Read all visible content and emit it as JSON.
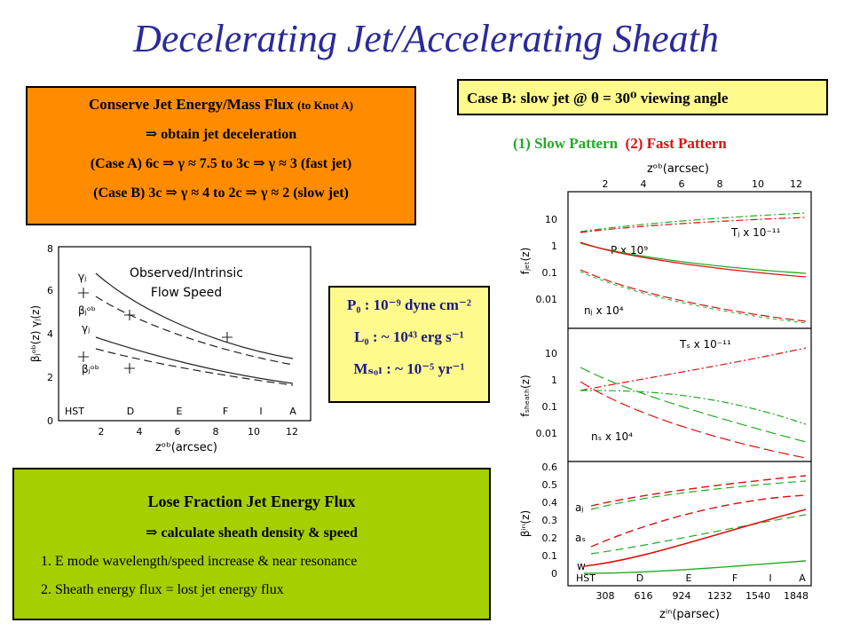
{
  "title": "Decelerating Jet/Accelerating Sheath",
  "box_orange": {
    "line1": "Conserve Jet Energy/Mass Flux",
    "line1_small": "(to Knot A)",
    "line2": "⇒ obtain jet deceleration",
    "line3": "(Case A) 6c ⇒ γ ≈ 7.5 to 3c ⇒ γ ≈ 3 (fast jet)",
    "line4": "(Case B) 3c ⇒ γ ≈ 4 to 2c ⇒ γ ≈ 2 (slow jet)"
  },
  "box_caseb": {
    "text": "Case B: slow jet @ θ = 30⁰ viewing angle"
  },
  "patterns": {
    "slow": "(1) Slow Pattern",
    "fast": "(2) Fast Pattern"
  },
  "box_params": {
    "p0": "P₀ : 10⁻⁹ dyne cm⁻²",
    "l0": "L₀ : ~ 10⁴³ erg s⁻¹",
    "msol": "Mₛₒₗ : ~ 10⁻⁵ yr⁻¹"
  },
  "box_green": {
    "heading": "Lose Fraction Jet Energy Flux",
    "subheading": "⇒ calculate sheath density & speed",
    "item1": "1. E mode wavelength/speed increase & near resonance",
    "item2": "2.   Sheath energy flux  =  lost jet energy flux"
  },
  "left_plot": {
    "title_line1": "Observed/Intrinsic",
    "title_line2": "Flow Speed",
    "ylabel": "βⱼᵒᵇ(z)   γⱼ(z)",
    "xlabel": "zᵒᵇ(arcsec)",
    "yticks": [
      "0",
      "2",
      "4",
      "6",
      "8"
    ],
    "xticks": [
      "2",
      "4",
      "6",
      "8",
      "10",
      "12"
    ],
    "knots": [
      "HST",
      "D",
      "E",
      "F",
      "I",
      "A"
    ],
    "labels": [
      "γⱼ",
      "βⱼᵒᵇ",
      "γⱼ",
      "βⱼᵒᵇ"
    ]
  },
  "right_plot": {
    "top_axis_label": "zᵒᵇ(arcsec)",
    "top_ticks": [
      "2",
      "4",
      "6",
      "8",
      "10",
      "12"
    ],
    "p1_ylabel": "fⱼₑₜ(z)",
    "p1_yticks": [
      "10",
      "1",
      "0.1",
      "0.01"
    ],
    "p1_labels": [
      "Tⱼ x 10⁻¹¹",
      "P x 10⁹",
      "nⱼ x 10⁴"
    ],
    "p2_ylabel": "fₛₕₑₐₜₕ(z)",
    "p2_yticks": [
      "10",
      "1",
      "0.1",
      "0.01"
    ],
    "p2_labels": [
      "Tₛ x 10⁻¹¹",
      "nₛ x 10⁴"
    ],
    "p3_ylabel": "βⁱⁿ(z)",
    "p3_yticks": [
      "0.6",
      "0.5",
      "0.4",
      "0.3",
      "0.2",
      "0.1",
      "0"
    ],
    "p3_labels": [
      "aⱼ",
      "aₛ",
      "w"
    ],
    "knots": [
      "HST",
      "D",
      "E",
      "F",
      "I",
      "A"
    ],
    "bottom_ticks": [
      "308",
      "616",
      "924",
      "1232",
      "1540",
      "1848"
    ],
    "xlabel": "zⁱⁿ(parsec)"
  },
  "colors": {
    "title": "#2a2a9a",
    "orange": "#ff8c00",
    "yellow": "#fffa8c",
    "green": "#a6cf00",
    "slow": "#22aa22",
    "fast": "#dd1010"
  }
}
